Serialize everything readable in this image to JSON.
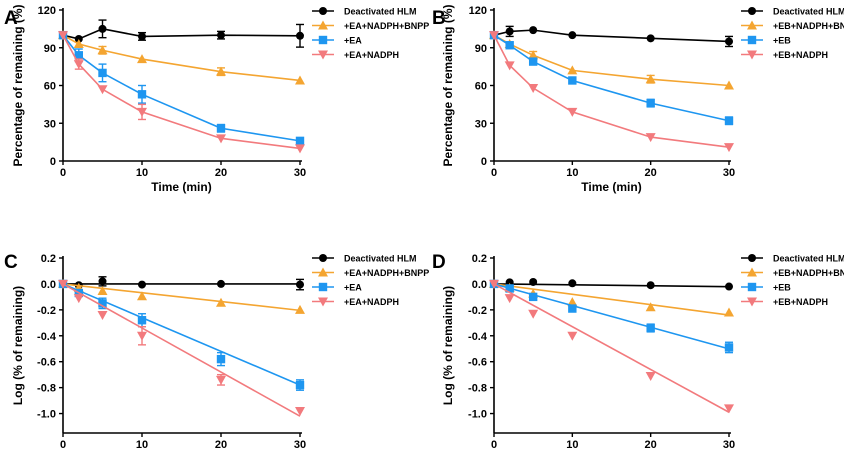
{
  "colors": {
    "deactivated": "#000000",
    "bnpp": "#F4A531",
    "substrate": "#1E96F0",
    "nadph": "#F27A7D"
  },
  "chart_data": [
    {
      "panel": "A",
      "type": "line",
      "xlabel": "Time (min)",
      "ylabel": "Percentage of remaining (%)",
      "xlim": [
        0,
        30
      ],
      "ylim": [
        0,
        120
      ],
      "xticks": [
        "0",
        "10",
        "20",
        "30"
      ],
      "yticks": [
        "0",
        "30",
        "60",
        "90",
        "120"
      ],
      "legend_position": "top-right",
      "x": [
        0,
        2,
        5,
        10,
        20,
        30
      ],
      "series": [
        {
          "name": "Deactivated HLM",
          "marker": "circle",
          "color_key": "deactivated",
          "fit": false,
          "values": [
            100,
            97,
            105,
            99,
            100,
            99.5
          ],
          "errors": [
            2,
            2,
            7,
            3,
            3,
            9
          ]
        },
        {
          "name": "+EA+NADPH+BNPP",
          "marker": "triangle-up",
          "color_key": "bnpp",
          "fit": false,
          "values": [
            100,
            93,
            88,
            81,
            71,
            64
          ],
          "errors": [
            1,
            2,
            3,
            2,
            3,
            1
          ]
        },
        {
          "name": "+EA",
          "marker": "square",
          "color_key": "substrate",
          "fit": false,
          "values": [
            100,
            84,
            70,
            53,
            26,
            16
          ],
          "errors": [
            2,
            5,
            7,
            7,
            3,
            2
          ]
        },
        {
          "name": "+EA+NADPH",
          "marker": "triangle-down",
          "color_key": "nadph",
          "fit": false,
          "values": [
            100,
            77,
            57,
            39,
            18,
            10
          ],
          "errors": [
            2,
            4,
            2,
            6,
            1,
            1
          ]
        }
      ]
    },
    {
      "panel": "B",
      "type": "line",
      "xlabel": "Time (min)",
      "ylabel": "Percentage of remaining (%)",
      "xlim": [
        0,
        30
      ],
      "ylim": [
        0,
        120
      ],
      "xticks": [
        "0",
        "10",
        "20",
        "30"
      ],
      "yticks": [
        "0",
        "30",
        "60",
        "90",
        "120"
      ],
      "legend_position": "top-right",
      "x": [
        0,
        2,
        5,
        10,
        20,
        30
      ],
      "series": [
        {
          "name": "Deactivated HLM",
          "marker": "circle",
          "color_key": "deactivated",
          "fit": false,
          "values": [
            100,
            103,
            104,
            100,
            97.5,
            95
          ],
          "errors": [
            2,
            4,
            2,
            1,
            2,
            4
          ]
        },
        {
          "name": "+EB+NADPH+BNPP",
          "marker": "triangle-up",
          "color_key": "bnpp",
          "fit": false,
          "values": [
            100,
            93,
            84,
            72,
            65,
            60
          ],
          "errors": [
            1,
            2,
            3,
            2,
            3,
            2
          ]
        },
        {
          "name": "+EB",
          "marker": "square",
          "color_key": "substrate",
          "fit": false,
          "values": [
            100,
            92,
            79,
            64,
            46,
            32
          ],
          "errors": [
            1,
            2,
            2,
            2,
            3,
            3
          ]
        },
        {
          "name": "+EB+NADPH",
          "marker": "triangle-down",
          "color_key": "nadph",
          "fit": false,
          "values": [
            100,
            76,
            58,
            39,
            19,
            11
          ],
          "errors": [
            1,
            2,
            1,
            2,
            1,
            1
          ]
        }
      ]
    },
    {
      "panel": "C",
      "type": "scatter",
      "xlabel": "Time (min)",
      "ylabel": "Log (% of remaining)",
      "xlim": [
        0,
        30
      ],
      "ylim": [
        -1.15,
        0.2
      ],
      "xticks": [
        "0",
        "10",
        "20",
        "30"
      ],
      "yticks": [
        "0.2",
        "0.0",
        "-0.2",
        "-0.4",
        "-0.6",
        "-0.8",
        "-1.0"
      ],
      "legend_position": "top-right",
      "x": [
        0,
        2,
        5,
        10,
        20,
        30
      ],
      "series": [
        {
          "name": "Deactivated HLM",
          "marker": "circle",
          "color_key": "deactivated",
          "fit": true,
          "slope": 0,
          "values": [
            0,
            -0.01,
            0.02,
            -0.005,
            0,
            -0.005
          ],
          "errors": [
            0.015,
            0.015,
            0.035,
            0.015,
            0.015,
            0.04
          ]
        },
        {
          "name": "+EA+NADPH+BNPP",
          "marker": "triangle-up",
          "color_key": "bnpp",
          "fit": true,
          "slope": -0.0068,
          "values": [
            0,
            -0.03,
            -0.055,
            -0.095,
            -0.145,
            -0.2
          ],
          "errors": [
            0.01,
            0.01,
            0.015,
            0.01,
            0.01,
            0.01
          ]
        },
        {
          "name": "+EA",
          "marker": "square",
          "color_key": "substrate",
          "fit": true,
          "slope": -0.026,
          "values": [
            0,
            -0.07,
            -0.15,
            -0.28,
            -0.58,
            -0.78
          ],
          "errors": [
            0.01,
            0.02,
            0.04,
            0.05,
            0.05,
            0.04
          ]
        },
        {
          "name": "+EA+NADPH",
          "marker": "triangle-down",
          "color_key": "nadph",
          "fit": true,
          "slope": -0.034,
          "values": [
            0,
            -0.11,
            -0.24,
            -0.4,
            -0.74,
            -0.98
          ],
          "errors": [
            0.01,
            0.02,
            0.02,
            0.07,
            0.04,
            0.02
          ]
        }
      ]
    },
    {
      "panel": "D",
      "type": "scatter",
      "xlabel": "Time (min)",
      "ylabel": "Log (% of remaining)",
      "xlim": [
        0,
        30
      ],
      "ylim": [
        -1.15,
        0.2
      ],
      "xticks": [
        "0",
        "10",
        "20",
        "30"
      ],
      "yticks": [
        "0.2",
        "0.0",
        "-0.2",
        "-0.4",
        "-0.6",
        "-0.8",
        "-1.0"
      ],
      "legend_position": "top-right",
      "x": [
        0,
        2,
        5,
        10,
        20,
        30
      ],
      "series": [
        {
          "name": "Deactivated HLM",
          "marker": "circle",
          "color_key": "deactivated",
          "fit": true,
          "slope": -0.0007,
          "values": [
            0,
            0.012,
            0.015,
            0.005,
            -0.01,
            -0.02
          ],
          "errors": [
            0.01,
            0.01,
            0.01,
            0.01,
            0.01,
            0.01
          ]
        },
        {
          "name": "+EB+NADPH+BNPP",
          "marker": "triangle-up",
          "color_key": "bnpp",
          "fit": true,
          "slope": -0.008,
          "values": [
            0,
            -0.03,
            -0.075,
            -0.14,
            -0.18,
            -0.22
          ],
          "errors": [
            0.01,
            0.01,
            0.01,
            0.01,
            0.01,
            0.01
          ]
        },
        {
          "name": "+EB",
          "marker": "square",
          "color_key": "substrate",
          "fit": true,
          "slope": -0.0167,
          "values": [
            0,
            -0.035,
            -0.1,
            -0.19,
            -0.34,
            -0.49
          ],
          "errors": [
            0.01,
            0.01,
            0.01,
            0.015,
            0.03,
            0.04
          ]
        },
        {
          "name": "+EB+NADPH",
          "marker": "triangle-down",
          "color_key": "nadph",
          "fit": true,
          "slope": -0.033,
          "values": [
            0,
            -0.11,
            -0.23,
            -0.4,
            -0.71,
            -0.96
          ],
          "errors": [
            0.01,
            0.01,
            0.01,
            0.02,
            0.02,
            0.02
          ]
        }
      ]
    }
  ]
}
